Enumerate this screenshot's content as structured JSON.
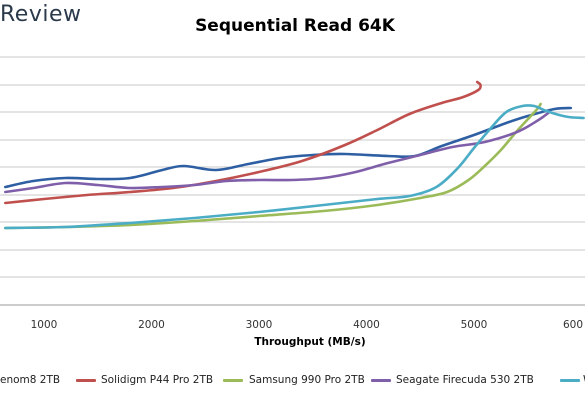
{
  "header": {
    "brand": "Review"
  },
  "chart_data": {
    "type": "line",
    "title": "Sequential Read 64K",
    "xlabel": "Throughput (MB/s)",
    "ylabel": "",
    "xlim": [
      640,
      6080
    ],
    "x_ticks": [
      "1000",
      "2000",
      "3000",
      "4000",
      "5000",
      "600"
    ],
    "grid": true,
    "legend_position": "bottom",
    "series": [
      {
        "name": "enom8 2TB",
        "color": "#2e5fa3",
        "points": [
          [
            640,
            187
          ],
          [
            900,
            181
          ],
          [
            1200,
            178
          ],
          [
            1500,
            179
          ],
          [
            1800,
            178
          ],
          [
            2100,
            170
          ],
          [
            2300,
            166
          ],
          [
            2600,
            170
          ],
          [
            2900,
            164
          ],
          [
            3200,
            158
          ],
          [
            3500,
            155
          ],
          [
            3800,
            154
          ],
          [
            4200,
            156
          ],
          [
            4450,
            156
          ],
          [
            4700,
            146
          ],
          [
            5000,
            135
          ],
          [
            5300,
            123
          ],
          [
            5500,
            116
          ],
          [
            5750,
            109
          ],
          [
            5900,
            108
          ]
        ]
      },
      {
        "name": "Solidigm P44 Pro 2TB",
        "color": "#c0504d",
        "points": [
          [
            640,
            203
          ],
          [
            1000,
            199
          ],
          [
            1400,
            195
          ],
          [
            1800,
            192
          ],
          [
            2200,
            188
          ],
          [
            2600,
            181
          ],
          [
            3000,
            172
          ],
          [
            3400,
            161
          ],
          [
            3800,
            145
          ],
          [
            4100,
            130
          ],
          [
            4400,
            114
          ],
          [
            4700,
            103
          ],
          [
            4900,
            97
          ],
          [
            5040,
            90
          ],
          [
            5060,
            85
          ],
          [
            5030,
            82
          ]
        ]
      },
      {
        "name": "Samsung 990 Pro 2TB",
        "color": "#9bbb59",
        "points": [
          [
            640,
            228
          ],
          [
            1200,
            227
          ],
          [
            1800,
            225
          ],
          [
            2400,
            221
          ],
          [
            3000,
            216
          ],
          [
            3600,
            211
          ],
          [
            4100,
            205
          ],
          [
            4500,
            198
          ],
          [
            4750,
            192
          ],
          [
            4950,
            180
          ],
          [
            5100,
            166
          ],
          [
            5250,
            150
          ],
          [
            5400,
            131
          ],
          [
            5580,
            110
          ],
          [
            5620,
            104
          ]
        ]
      },
      {
        "name": "Seagate Firecuda 530 2TB",
        "color": "#7f5fa9",
        "points": [
          [
            640,
            192
          ],
          [
            900,
            188
          ],
          [
            1200,
            183
          ],
          [
            1500,
            185
          ],
          [
            1800,
            188
          ],
          [
            2100,
            187
          ],
          [
            2400,
            185
          ],
          [
            2700,
            181
          ],
          [
            3000,
            180
          ],
          [
            3300,
            180
          ],
          [
            3600,
            178
          ],
          [
            3900,
            172
          ],
          [
            4200,
            163
          ],
          [
            4500,
            155
          ],
          [
            4800,
            147
          ],
          [
            5100,
            142
          ],
          [
            5400,
            132
          ],
          [
            5600,
            120
          ],
          [
            5690,
            113
          ]
        ]
      },
      {
        "name": "W",
        "color": "#4bacc6",
        "points": [
          [
            640,
            228
          ],
          [
            1200,
            227
          ],
          [
            1800,
            223
          ],
          [
            2400,
            218
          ],
          [
            3000,
            212
          ],
          [
            3600,
            205
          ],
          [
            4100,
            199
          ],
          [
            4400,
            196
          ],
          [
            4650,
            187
          ],
          [
            4850,
            168
          ],
          [
            5000,
            148
          ],
          [
            5150,
            129
          ],
          [
            5300,
            112
          ],
          [
            5450,
            106
          ],
          [
            5560,
            106
          ],
          [
            5650,
            110
          ],
          [
            5760,
            114
          ],
          [
            5880,
            117
          ],
          [
            6020,
            118
          ]
        ]
      }
    ]
  }
}
